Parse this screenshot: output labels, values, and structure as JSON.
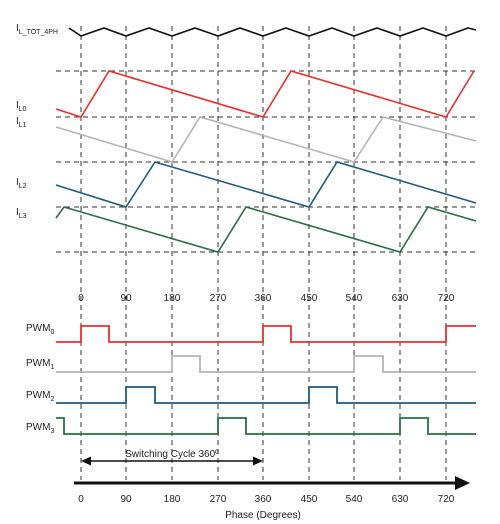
{
  "labels": {
    "i_tot": {
      "main": "I",
      "sub": "L_TOT_4PH"
    },
    "i_l0": {
      "main": "I",
      "sub": "L0"
    },
    "i_l1": {
      "main": "I",
      "sub": "L1"
    },
    "i_l2": {
      "main": "I",
      "sub": "L2"
    },
    "i_l3": {
      "main": "I",
      "sub": "L3"
    },
    "pwm0": {
      "main": "PWM",
      "sub": "0"
    },
    "pwm1": {
      "main": "PWM",
      "sub": "1"
    },
    "pwm2": {
      "main": "PWM",
      "sub": "2"
    },
    "pwm3": {
      "main": "PWM",
      "sub": "3"
    }
  },
  "phase_ticks": [
    "0",
    "90",
    "180",
    "270",
    "360",
    "450",
    "540",
    "630",
    "720"
  ],
  "switching_cycle_label": "Switching Cycle 360º",
  "x_axis_label": "Phase (Degrees)",
  "colors": {
    "phase0": "#e8322c",
    "phase1": "#b5b5b5",
    "phase2": "#1f5a7d",
    "phase3": "#2a6e46",
    "total": "#111111",
    "grid": "#333333"
  }
}
